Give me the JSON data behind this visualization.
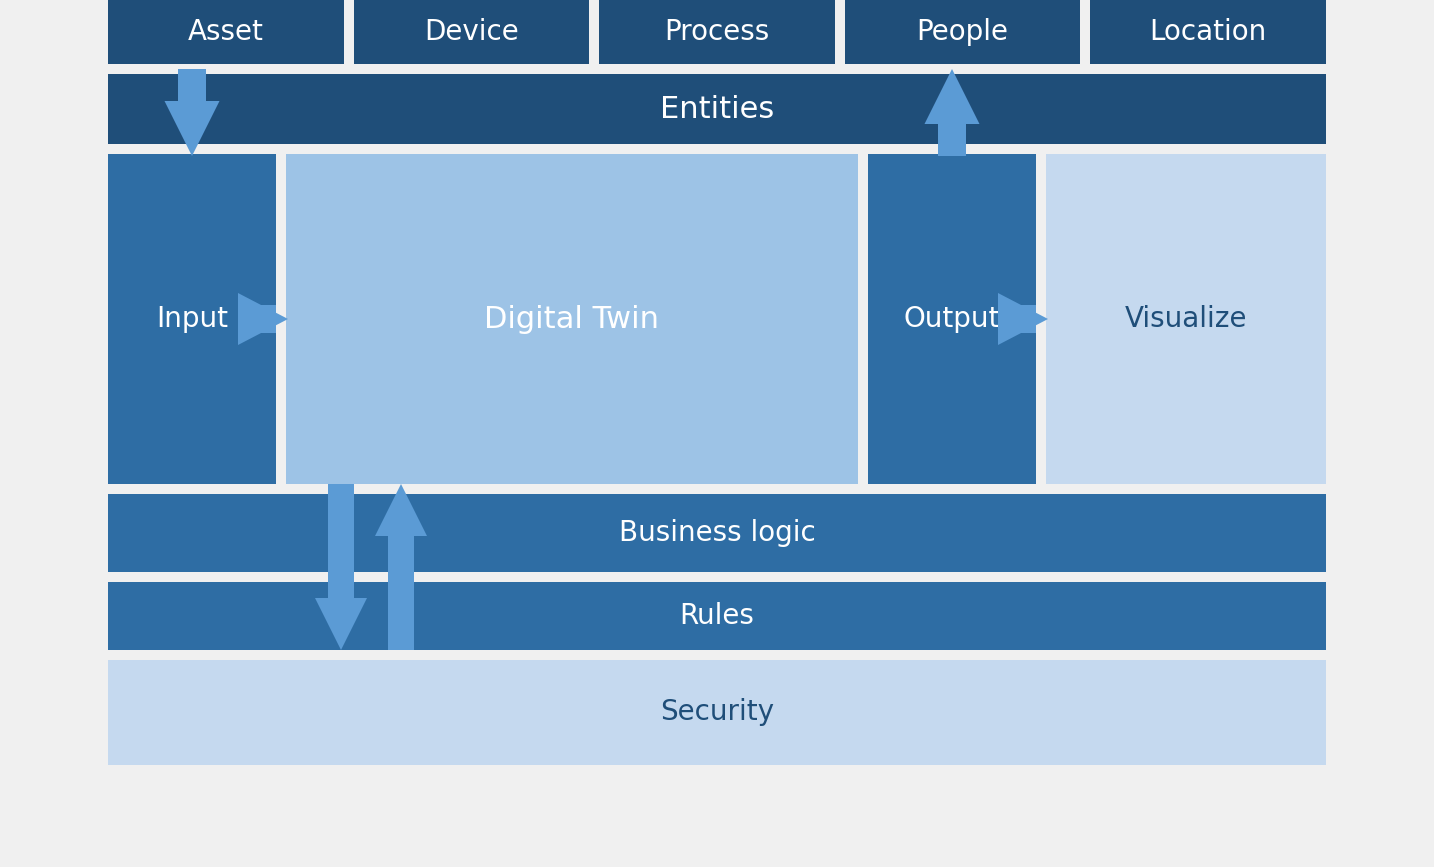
{
  "bg_color": "#f0f0f0",
  "dark_blue": "#1F4E79",
  "mid_blue": "#2E6DA4",
  "light_blue": "#9DC3E6",
  "lighter_blue": "#C5D9EF",
  "arrow_blue": "#5B9BD5",
  "top_boxes": [
    "Asset",
    "Device",
    "Process",
    "People",
    "Location"
  ],
  "top_box_color": "#1F4E79",
  "entities_color": "#1F4E79",
  "input_color": "#2E6DA4",
  "digital_twin_color": "#9DC3E6",
  "output_color": "#2E6DA4",
  "visualize_color": "#C5D9EF",
  "business_logic_color": "#2E6DA4",
  "rules_color": "#2E6DA4",
  "security_color": "#C5D9EF",
  "text_color_white": "#FFFFFF",
  "text_color_dark": "#1F4E79",
  "font_size": 20
}
